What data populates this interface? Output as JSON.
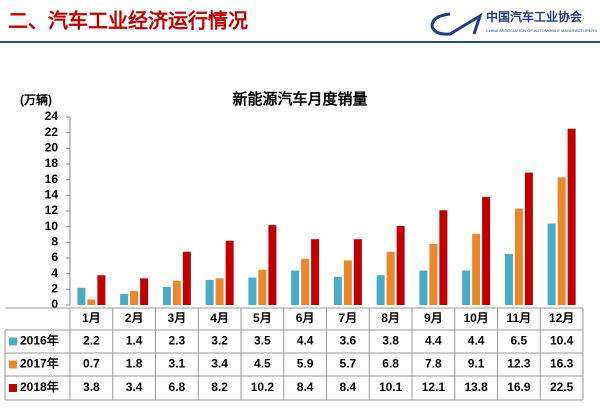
{
  "header": {
    "title": "二、汽车工业经济运行情况",
    "org": "中国汽车工业协会",
    "org_en": "CHINA ASSOCIATION OF AUTOMOBILE MANUFACTURERS"
  },
  "chart_data": {
    "type": "bar",
    "title": "新能源汽车月度销量",
    "y_label": "(万辆)",
    "categories": [
      "1月",
      "2月",
      "3月",
      "4月",
      "5月",
      "6月",
      "7月",
      "8月",
      "9月",
      "10月",
      "11月",
      "12月"
    ],
    "series": [
      {
        "name": "2016年",
        "color": "#4bacc6",
        "values": [
          2.2,
          1.4,
          2.3,
          3.2,
          3.5,
          4.4,
          3.6,
          3.8,
          4.4,
          4.4,
          6.5,
          10.4
        ]
      },
      {
        "name": "2017年",
        "color": "#e8892e",
        "values": [
          0.7,
          1.8,
          3.1,
          3.4,
          4.5,
          5.9,
          5.7,
          6.8,
          7.8,
          9.1,
          12.3,
          16.3
        ]
      },
      {
        "name": "2018年",
        "color": "#c00000",
        "values": [
          3.8,
          3.4,
          6.8,
          8.2,
          10.2,
          8.4,
          8.4,
          10.1,
          12.1,
          13.8,
          16.9,
          22.5
        ]
      }
    ],
    "ylim": [
      0,
      24
    ],
    "yticks": [
      0,
      2,
      4,
      6,
      8,
      10,
      12,
      14,
      16,
      18,
      20,
      22,
      24
    ],
    "grid": false
  }
}
